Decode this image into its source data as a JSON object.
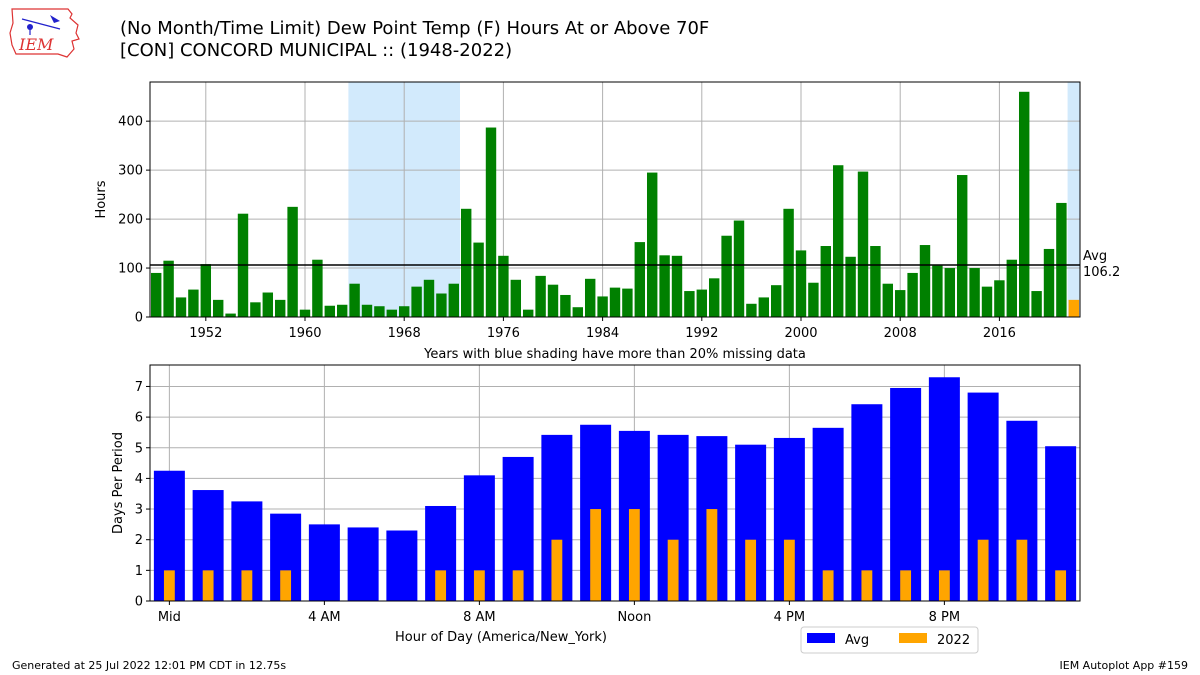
{
  "header": {
    "title_line1": "(No Month/Time Limit) Dew Point Temp (F) Hours At or Above 70F",
    "title_line2": "[CON] CONCORD MUNICIPAL :: (1948-2022)",
    "logo_text": "IEM"
  },
  "footer": {
    "generated": "Generated at 25 Jul 2022 12:01 PM CDT in 12.75s",
    "app": "IEM Autoplot App #159"
  },
  "colors": {
    "bars_top": "#008000",
    "current_year": "#FFA500",
    "avg_bars": "#0000FF",
    "shade": "#D2EAFC",
    "avg_line": "#000000",
    "grid": "#B0B0B0"
  },
  "chart_data": [
    {
      "type": "bar",
      "ylabel": "Hours",
      "xlabel": "Years with blue shading have more than 20% missing data",
      "x": [
        1948,
        1949,
        1950,
        1951,
        1952,
        1953,
        1954,
        1955,
        1956,
        1957,
        1958,
        1959,
        1960,
        1961,
        1962,
        1963,
        1964,
        1965,
        1966,
        1967,
        1968,
        1969,
        1970,
        1971,
        1972,
        1973,
        1974,
        1975,
        1976,
        1977,
        1978,
        1979,
        1980,
        1981,
        1982,
        1983,
        1984,
        1985,
        1986,
        1987,
        1988,
        1989,
        1990,
        1991,
        1992,
        1993,
        1994,
        1995,
        1996,
        1997,
        1998,
        1999,
        2000,
        2001,
        2002,
        2003,
        2004,
        2005,
        2006,
        2007,
        2008,
        2009,
        2010,
        2011,
        2012,
        2013,
        2014,
        2015,
        2016,
        2017,
        2018,
        2019,
        2020,
        2021,
        2022
      ],
      "values": [
        90,
        115,
        40,
        56,
        108,
        35,
        7,
        211,
        30,
        50,
        35,
        225,
        15,
        117,
        23,
        25,
        68,
        25,
        22,
        15,
        22,
        62,
        76,
        48,
        68,
        221,
        152,
        387,
        125,
        76,
        15,
        84,
        66,
        45,
        20,
        78,
        42,
        60,
        58,
        153,
        295,
        126,
        125,
        53,
        56,
        79,
        166,
        197,
        27,
        40,
        65,
        221,
        136,
        70,
        145,
        310,
        123,
        297,
        145,
        68,
        55,
        90,
        147,
        105,
        100,
        290,
        100,
        62,
        75,
        117,
        460,
        53,
        139,
        233,
        35
      ],
      "highlight": {
        "2022": "#FFA500"
      },
      "shaded_ranges": [
        [
          1964,
          1972
        ],
        [
          2022,
          2022
        ]
      ],
      "avg_line": {
        "value": 106.2,
        "label": "Avg",
        "value_label": "106.2"
      },
      "x_ticks": [
        1952,
        1960,
        1968,
        1976,
        1984,
        1992,
        2000,
        2008,
        2016
      ],
      "y_ticks": [
        0,
        100,
        200,
        300,
        400
      ],
      "ylim": [
        0,
        480
      ],
      "grid": true
    },
    {
      "type": "bar",
      "ylabel": "Days Per Period",
      "xlabel": "Hour of Day (America/New_York)",
      "x": [
        0,
        1,
        2,
        3,
        4,
        5,
        6,
        7,
        8,
        9,
        10,
        11,
        12,
        13,
        14,
        15,
        16,
        17,
        18,
        19,
        20,
        21,
        22,
        23
      ],
      "x_tick_positions": [
        0,
        4,
        8,
        12,
        16,
        20
      ],
      "x_tick_labels": [
        "Mid",
        "4 AM",
        "8 AM",
        "Noon",
        "4 PM",
        "8 PM"
      ],
      "y_ticks": [
        0,
        1,
        2,
        3,
        4,
        5,
        6,
        7
      ],
      "ylim": [
        0,
        7.7
      ],
      "grid": true,
      "legend_position": "below-right",
      "series": [
        {
          "name": "Avg",
          "color": "#0000FF",
          "values": [
            4.25,
            3.62,
            3.25,
            2.85,
            2.5,
            2.4,
            2.3,
            3.1,
            4.1,
            4.7,
            5.42,
            5.75,
            5.55,
            5.42,
            5.38,
            5.1,
            5.32,
            5.65,
            6.42,
            6.95,
            7.3,
            6.8,
            5.88,
            5.05
          ]
        },
        {
          "name": "2022",
          "color": "#FFA500",
          "values": [
            1,
            1,
            1,
            1,
            0,
            0,
            0,
            1,
            1,
            1,
            2,
            3,
            3,
            2,
            3,
            2,
            2,
            1,
            1,
            1,
            1,
            2,
            2,
            1
          ]
        }
      ]
    }
  ]
}
